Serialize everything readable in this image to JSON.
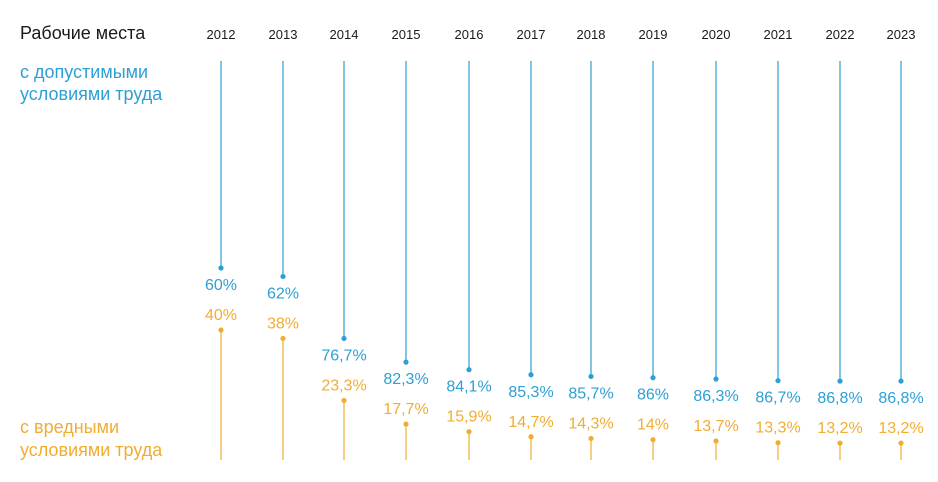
{
  "chart_data": {
    "type": "bar",
    "title": "Рабочие места",
    "categories": [
      "2012",
      "2013",
      "2014",
      "2015",
      "2016",
      "2017",
      "2018",
      "2019",
      "2020",
      "2021",
      "2022",
      "2023"
    ],
    "series": [
      {
        "name": "с допустимыми условиями труда",
        "color": "#2e9fd4",
        "values": [
          60,
          62,
          76.7,
          82.3,
          84.1,
          85.3,
          85.7,
          86,
          86.3,
          86.7,
          86.8,
          86.8
        ],
        "labels": [
          "60%",
          "62%",
          "76,7%",
          "82,3%",
          "84,1%",
          "85,3%",
          "85,7%",
          "86%",
          "86,3%",
          "86,7%",
          "86,8%",
          "86,8%"
        ]
      },
      {
        "name": "с вредными условиями труда",
        "color": "#f0ad32",
        "values": [
          40,
          38,
          23.3,
          17.7,
          15.9,
          14.7,
          14.3,
          14,
          13.7,
          13.3,
          13.2,
          13.2
        ],
        "labels": [
          "40%",
          "38%",
          "23,3%",
          "17,7%",
          "15,9%",
          "14,7%",
          "14,3%",
          "14%",
          "13,7%",
          "13,3%",
          "13,2%",
          "13,2%"
        ]
      }
    ],
    "legend": {
      "top_line1": "с допустимыми",
      "top_line2": "условиями труда",
      "bottom_line1": "с вредными",
      "bottom_line2": "условиями труда"
    },
    "ylim": [
      0,
      100
    ]
  }
}
